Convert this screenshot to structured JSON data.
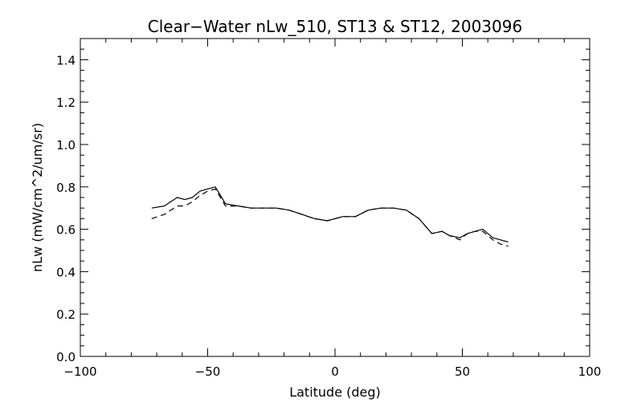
{
  "chart_data": {
    "type": "line",
    "title": "Clear−Water nLw_510, ST13 & ST12, 2003096",
    "xlabel": "Latitude (deg)",
    "ylabel": "nLw (mW/cm^2/um/sr)",
    "xlim": [
      -100,
      100
    ],
    "ylim": [
      0.0,
      1.5
    ],
    "xticks": [
      -100,
      -50,
      0,
      50,
      100
    ],
    "xtick_labels": [
      "−100",
      "−50",
      "0",
      "50",
      "100"
    ],
    "yticks": [
      0.0,
      0.2,
      0.4,
      0.6,
      0.8,
      1.0,
      1.2,
      1.4
    ],
    "ytick_labels": [
      "0.0",
      "0.2",
      "0.4",
      "0.6",
      "0.8",
      "1.0",
      "1.2",
      "1.4"
    ],
    "grid": false,
    "legend": "none",
    "series": [
      {
        "style": "solid",
        "x": [
          -72,
          -67,
          -62,
          -59,
          -56,
          -53,
          -50,
          -47,
          -43,
          -38,
          -33,
          -28,
          -23,
          -18,
          -13,
          -8,
          -3,
          3,
          8,
          13,
          18,
          23,
          28,
          33,
          38,
          42,
          45,
          49,
          52,
          55,
          58,
          62,
          65,
          68
        ],
        "y": [
          0.7,
          0.71,
          0.75,
          0.74,
          0.75,
          0.78,
          0.79,
          0.8,
          0.72,
          0.71,
          0.7,
          0.7,
          0.7,
          0.69,
          0.67,
          0.65,
          0.64,
          0.66,
          0.66,
          0.69,
          0.7,
          0.7,
          0.69,
          0.65,
          0.58,
          0.59,
          0.57,
          0.56,
          0.58,
          0.59,
          0.6,
          0.56,
          0.55,
          0.54
        ]
      },
      {
        "style": "dashed",
        "x": [
          -72,
          -67,
          -62,
          -59,
          -56,
          -53,
          -50,
          -47,
          -43,
          -38,
          -33,
          -28,
          -23,
          -18,
          -13,
          -8,
          -3,
          3,
          8,
          13,
          18,
          23,
          28,
          33,
          38,
          42,
          45,
          49,
          52,
          55,
          58,
          62,
          65,
          68
        ],
        "y": [
          0.65,
          0.67,
          0.71,
          0.71,
          0.73,
          0.76,
          0.78,
          0.79,
          0.71,
          0.71,
          0.7,
          0.7,
          0.7,
          0.69,
          0.67,
          0.65,
          0.64,
          0.66,
          0.66,
          0.69,
          0.7,
          0.7,
          0.69,
          0.65,
          0.58,
          0.59,
          0.57,
          0.55,
          0.58,
          0.59,
          0.59,
          0.55,
          0.53,
          0.52
        ]
      }
    ]
  }
}
